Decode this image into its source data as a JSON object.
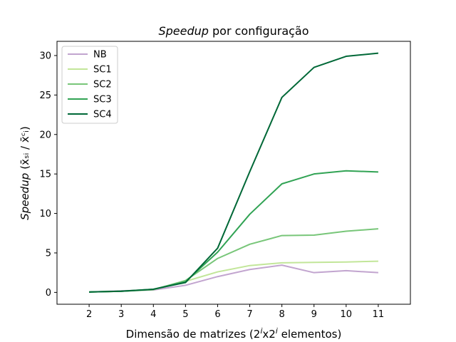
{
  "chart_data": {
    "type": "line",
    "title": {
      "italic": "Speedup",
      "rest": " por configuração"
    },
    "xlabel": {
      "prefix": "Dimensão de matrizes (2",
      "sup1": "i",
      "mid": "x2",
      "sup2": "i",
      "suffix": " elementos)"
    },
    "ylabel": {
      "italic": "Speedup",
      "formula": "(x̄ₛᵢ / x̄ᶜᵢ)"
    },
    "x": [
      2,
      3,
      4,
      5,
      6,
      7,
      8,
      9,
      10,
      11
    ],
    "xlim": [
      1,
      12
    ],
    "ylim": [
      -1.5,
      31.8
    ],
    "yticks": [
      0,
      5,
      10,
      15,
      20,
      25,
      30
    ],
    "legend_position": "upper-left",
    "series": [
      {
        "name": "NB",
        "color": "#c2a5cf",
        "values": [
          0.05,
          0.2,
          0.3,
          0.9,
          2.0,
          2.9,
          3.45,
          2.5,
          2.75,
          2.5
        ]
      },
      {
        "name": "SC1",
        "color": "#c2e699",
        "values": [
          0.05,
          0.15,
          0.35,
          1.4,
          2.6,
          3.4,
          3.75,
          3.8,
          3.85,
          3.95
        ]
      },
      {
        "name": "SC2",
        "color": "#78c679",
        "values": [
          0.05,
          0.15,
          0.35,
          1.5,
          4.3,
          6.1,
          7.2,
          7.25,
          7.75,
          8.05
        ]
      },
      {
        "name": "SC3",
        "color": "#31a354",
        "values": [
          0.05,
          0.15,
          0.4,
          1.35,
          5.1,
          9.9,
          13.75,
          15.0,
          15.4,
          15.25
        ]
      },
      {
        "name": "SC4",
        "color": "#006837",
        "values": [
          0.05,
          0.15,
          0.4,
          1.25,
          5.6,
          15.3,
          24.7,
          28.5,
          29.9,
          30.3
        ]
      }
    ]
  }
}
